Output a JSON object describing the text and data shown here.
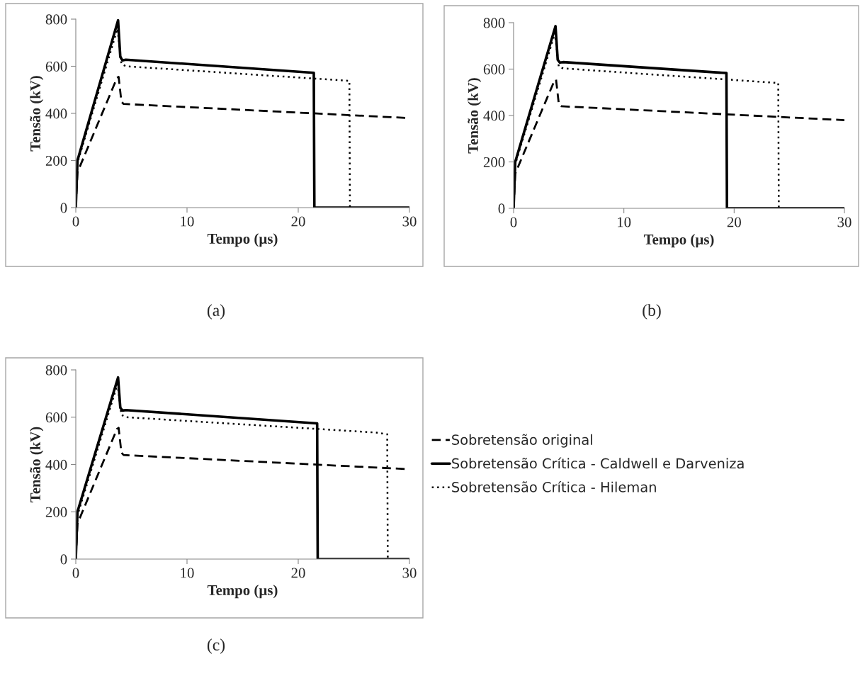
{
  "chart_data": [
    {
      "type": "line",
      "xlabel": "Tempo (µs)",
      "ylabel": "Tensão (kV)",
      "xlim": [
        0,
        30
      ],
      "ylim": [
        0,
        800
      ],
      "xticks": [
        0,
        10,
        20,
        30
      ],
      "yticks": [
        0,
        200,
        400,
        600,
        800
      ],
      "grid": false,
      "legend": false,
      "annotations": [
        "(a)"
      ],
      "series": [
        {
          "color": "#000000",
          "line_style": "dashed",
          "x": [
            0,
            0.15,
            3.7,
            3.85,
            4.1,
            4.3,
            30
          ],
          "values": [
            0,
            150,
            550,
            555,
            450,
            440,
            380
          ]
        },
        {
          "color": "#000000",
          "line_style": "solid",
          "x": [
            0,
            0.15,
            3.8,
            4.0,
            4.2,
            4.5,
            21.4,
            21.45,
            30
          ],
          "values": [
            0,
            200,
            795,
            640,
            625,
            628,
            572,
            0,
            0
          ]
        },
        {
          "color": "#000000",
          "line_style": "dotted",
          "x": [
            0,
            0.15,
            3.75,
            4.1,
            4.5,
            24.6,
            24.65
          ],
          "values": [
            0,
            190,
            760,
            610,
            600,
            538,
            0
          ]
        }
      ]
    },
    {
      "type": "line",
      "xlabel": "Tempo (µs)",
      "ylabel": "Tensão (kV)",
      "xlim": [
        0,
        30
      ],
      "ylim": [
        0,
        800
      ],
      "xticks": [
        0,
        10,
        20,
        30
      ],
      "yticks": [
        0,
        200,
        400,
        600,
        800
      ],
      "grid": false,
      "legend": false,
      "annotations": [
        "(b)"
      ],
      "series": [
        {
          "color": "#000000",
          "line_style": "dashed",
          "x": [
            0,
            0.15,
            3.7,
            3.85,
            4.1,
            4.3,
            30
          ],
          "values": [
            0,
            150,
            550,
            555,
            450,
            440,
            380
          ]
        },
        {
          "color": "#000000",
          "line_style": "solid",
          "x": [
            0,
            0.15,
            3.8,
            4.0,
            4.2,
            4.5,
            19.3,
            19.35,
            30
          ],
          "values": [
            0,
            200,
            785,
            640,
            628,
            630,
            583,
            0,
            0
          ]
        },
        {
          "color": "#000000",
          "line_style": "dotted",
          "x": [
            0,
            0.15,
            3.75,
            4.1,
            4.5,
            24.0,
            24.05
          ],
          "values": [
            0,
            190,
            755,
            610,
            603,
            540,
            0
          ]
        }
      ]
    },
    {
      "type": "line",
      "xlabel": "Tempo (µs)",
      "ylabel": "Tensão (kV)",
      "xlim": [
        0,
        30
      ],
      "ylim": [
        0,
        800
      ],
      "xticks": [
        0,
        10,
        20,
        30
      ],
      "yticks": [
        0,
        200,
        400,
        600,
        800
      ],
      "grid": false,
      "legend": "right",
      "annotations": [
        "(c)"
      ],
      "series": [
        {
          "name": "Sobretensão original",
          "color": "#000000",
          "line_style": "dashed",
          "x": [
            0,
            0.15,
            3.7,
            3.85,
            4.1,
            4.3,
            30
          ],
          "values": [
            0,
            150,
            550,
            555,
            450,
            440,
            380
          ]
        },
        {
          "name": "Sobretensão Crítica - Caldwell e Darveniza",
          "color": "#000000",
          "line_style": "solid",
          "x": [
            0,
            0.15,
            3.8,
            4.0,
            4.2,
            4.5,
            21.7,
            21.75,
            30
          ],
          "values": [
            0,
            200,
            768,
            640,
            628,
            630,
            574,
            0,
            0
          ]
        },
        {
          "name": "Sobretensão Crítica - Hileman",
          "color": "#000000",
          "line_style": "dotted",
          "x": [
            0,
            0.15,
            3.75,
            4.1,
            4.5,
            27.0,
            28.0,
            28.05
          ],
          "values": [
            0,
            185,
            740,
            610,
            600,
            535,
            528,
            0
          ]
        }
      ]
    }
  ]
}
